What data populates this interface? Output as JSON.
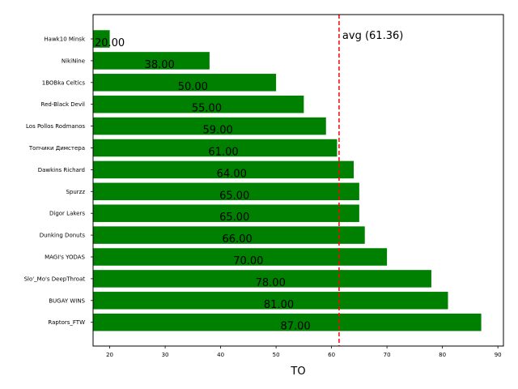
{
  "chart_data": {
    "type": "bar",
    "orientation": "horizontal",
    "categories": [
      "Hawk10 Minsk",
      "NikiNine",
      "1BOBka Celtics",
      "Red-Black Devil",
      "Los Pollos Rodmanos",
      "Топчики Димстера",
      "Dawkins Richard",
      "Spurzz",
      "Digor Lakers",
      "Dunking Donuts",
      "MAGI's YODAS",
      "Slo'_Mo's DeepThroat",
      "BUGAY WINS",
      "Raptors_FTW"
    ],
    "values": [
      20,
      38,
      50,
      55,
      59,
      61,
      64,
      65,
      65,
      66,
      70,
      78,
      81,
      87
    ],
    "data_labels": [
      "20.00",
      "38.00",
      "50.00",
      "55.00",
      "59.00",
      "61.00",
      "64.00",
      "65.00",
      "65.00",
      "66.00",
      "70.00",
      "78.00",
      "81.00",
      "87.00"
    ],
    "bar_color": "#008000",
    "xlabel": "TO",
    "ylabel": "",
    "title": "",
    "xlim": [
      17,
      91
    ],
    "xticks": [
      20,
      30,
      40,
      50,
      60,
      70,
      80,
      90
    ],
    "average": {
      "value": 61.36,
      "label": "avg (61.36)",
      "color": "#ff0000",
      "style": "dashed"
    },
    "grid": false
  }
}
